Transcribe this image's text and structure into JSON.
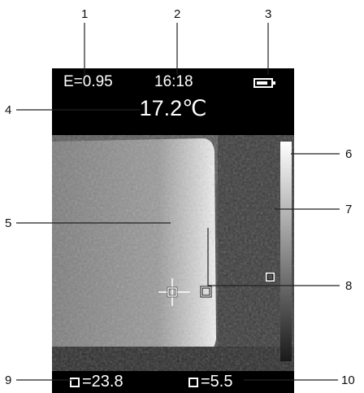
{
  "status": {
    "emissivity": "E=0.95",
    "time": "16:18",
    "battery_icon": "battery-icon"
  },
  "temperature": "17.2℃",
  "bottom": {
    "max_value": "=23.8",
    "min_value": "=5.5"
  },
  "callouts": [
    "1",
    "2",
    "3",
    "4",
    "5",
    "6",
    "7",
    "8",
    "9",
    "10"
  ],
  "colors": {
    "screen": "#000000",
    "text": "#ffffff",
    "callout_line": "#222222"
  }
}
